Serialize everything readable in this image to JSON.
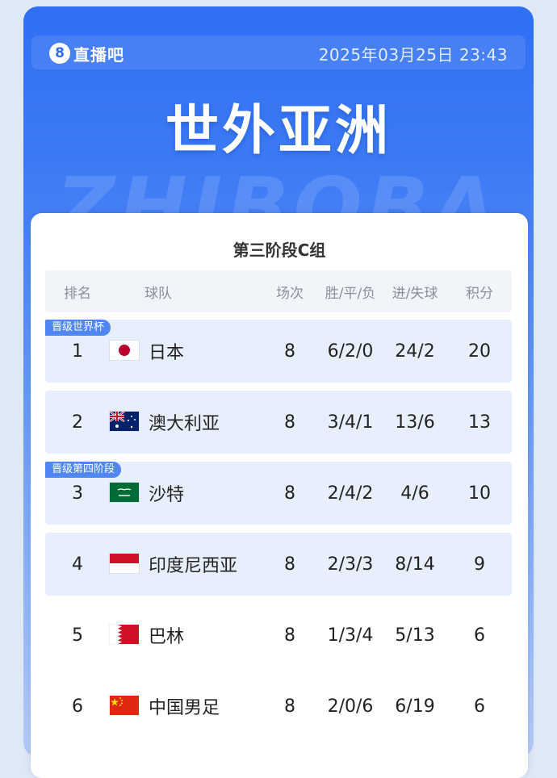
{
  "header": {
    "logo_badge": "8",
    "logo_text": "直播吧",
    "datetime": "2025年03月25日 23:43"
  },
  "headline": "世外亚洲",
  "watermark": "ZHIBOBA",
  "table": {
    "title": "第三阶段C组",
    "columns": [
      "排名",
      "球队",
      "场次",
      "胜/平/负",
      "进/失球",
      "积分"
    ],
    "badges": [
      "晋级世界杯",
      "晋级第四阶段"
    ],
    "rows": [
      {
        "rank": "1",
        "team": "日本",
        "mp": "8",
        "wdl": "6/2/0",
        "gd": "24/2",
        "pts": "20",
        "flag": "japan-flag-icon"
      },
      {
        "rank": "2",
        "team": "澳大利亚",
        "mp": "8",
        "wdl": "3/4/1",
        "gd": "13/6",
        "pts": "13",
        "flag": "australia-flag-icon"
      },
      {
        "rank": "3",
        "team": "沙特",
        "mp": "8",
        "wdl": "2/4/2",
        "gd": "4/6",
        "pts": "10",
        "flag": "saudi-flag-icon"
      },
      {
        "rank": "4",
        "team": "印度尼西亚",
        "mp": "8",
        "wdl": "2/3/3",
        "gd": "8/14",
        "pts": "9",
        "flag": "indonesia-flag-icon"
      },
      {
        "rank": "5",
        "team": "巴林",
        "mp": "8",
        "wdl": "1/3/4",
        "gd": "5/13",
        "pts": "6",
        "flag": "bahrain-flag-icon"
      },
      {
        "rank": "6",
        "team": "中国男足",
        "mp": "8",
        "wdl": "2/0/6",
        "gd": "6/19",
        "pts": "6",
        "flag": "china-flag-icon"
      }
    ]
  },
  "colors": {
    "brand_blue": "#2f6ff3",
    "badge_blue": "#4f86f2",
    "highlight_row": "#e8effc"
  }
}
